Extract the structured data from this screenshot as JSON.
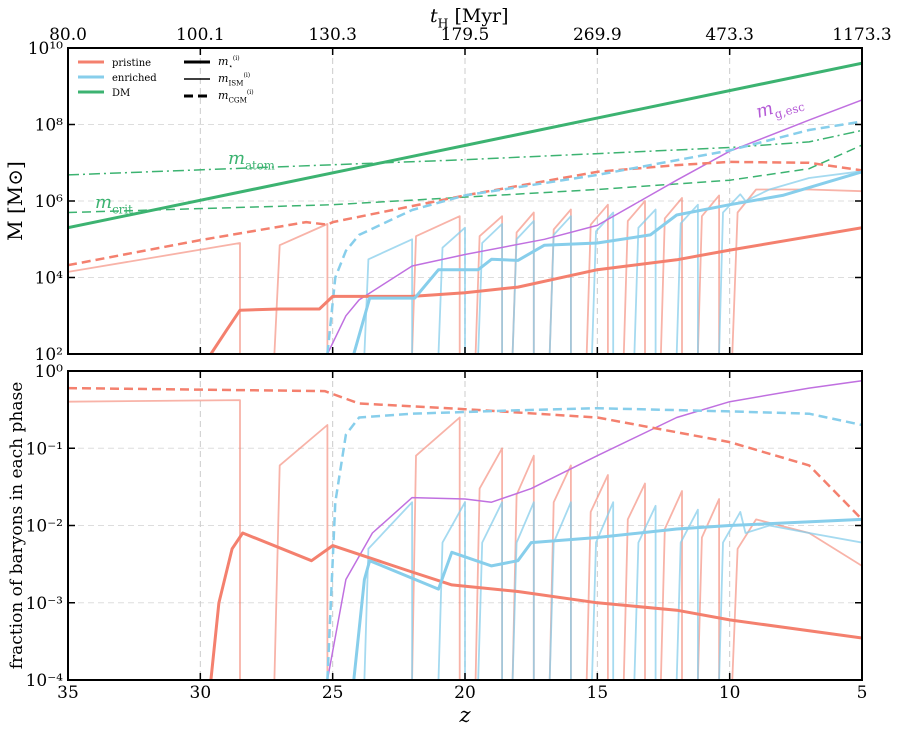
{
  "chart_data": [
    {
      "type": "line",
      "log_y": true,
      "grid": true,
      "top_xlabel": {
        "base": "t",
        "sub": "H",
        "rest": " [Myr]"
      },
      "ylabel": "M [M⊙]",
      "xlim": [
        35,
        5
      ],
      "xticks": [
        35,
        30,
        25,
        20,
        15,
        10,
        5
      ],
      "top_xticks": [
        {
          "value": 35,
          "label": "80.0"
        },
        {
          "value": 30,
          "label": "100.1"
        },
        {
          "value": 25,
          "label": "130.3"
        },
        {
          "value": 20,
          "label": "179.5"
        },
        {
          "value": 15,
          "label": "269.9"
        },
        {
          "value": 10,
          "label": "473.3"
        },
        {
          "value": 5,
          "label": "1173.3"
        }
      ],
      "ylim": [
        100,
        10000000000
      ],
      "yticks": [
        {
          "value": 100,
          "label": "10²"
        },
        {
          "value": 10000,
          "label": "10⁴"
        },
        {
          "value": 1000000,
          "label": "10⁶"
        },
        {
          "value": 100000000,
          "label": "10⁸"
        },
        {
          "value": 10000000000,
          "label": "10¹⁰"
        }
      ],
      "legend_position": "upper left",
      "legend_colors": [
        {
          "label": "pristine",
          "color": "#f4806e"
        },
        {
          "label": "enriched",
          "color": "#87ceeb"
        },
        {
          "label": "DM",
          "color": "#3cb371"
        }
      ],
      "legend_styles": [
        {
          "label": {
            "base": "m",
            "sub": "⋆",
            "sup": "(i)"
          },
          "dash": "solid",
          "width": 3
        },
        {
          "label": {
            "base": "m",
            "sub": "ISM",
            "sup": "(i)"
          },
          "dash": "solid",
          "width": 1.5
        },
        {
          "label": {
            "base": "m",
            "sub": "CGM",
            "sup": "(i)"
          },
          "dash": "dashed",
          "width": 3
        }
      ],
      "annotations": [
        {
          "base": "m",
          "sub": "atom",
          "color": "#3cb371"
        },
        {
          "base": "m",
          "sub": "crit",
          "color": "#3cb371"
        },
        {
          "base": "m",
          "sub": "g,esc",
          "color": "#b45ad6"
        }
      ],
      "series": [
        {
          "color": "#3cb371",
          "dash": "dashdot",
          "width": 1.5,
          "alpha": 1,
          "x": [
            35,
            20,
            10,
            7,
            5
          ],
          "values": [
            4800000,
            12000000,
            25000000,
            35000000,
            70000000
          ]
        },
        {
          "color": "#3cb371",
          "dash": "dashed",
          "width": 1.5,
          "alpha": 1,
          "x": [
            35,
            25,
            15,
            10,
            7,
            5
          ],
          "values": [
            500000,
            800000,
            2000000,
            3500000,
            7000000,
            29000000
          ]
        },
        {
          "color": "#f4806e",
          "dash": "solid",
          "width": 1.8,
          "alpha": 0.6,
          "x": [
            35,
            28.5,
            28.5,
            27.2,
            27.0,
            25.2,
            25.2,
            22.0,
            21.85,
            20.2,
            20.2,
            19.6,
            19.45,
            18.6,
            18.6,
            18.2,
            18.05,
            17.4,
            17.4,
            16.8,
            16.65,
            16.0,
            16.0,
            15.4,
            15.25,
            14.6,
            14.6,
            14.0,
            13.85,
            13.2,
            13.2,
            12.6,
            12.45,
            11.8,
            11.8,
            11.2,
            11.05,
            10.4,
            10.4,
            9.9,
            9.7,
            9,
            7,
            5
          ],
          "values": [
            14000,
            80000,
            100,
            100,
            70000,
            250000,
            100,
            100,
            120000,
            400000,
            100,
            100,
            120000,
            400000,
            100,
            100,
            150000,
            500000,
            100,
            100,
            180000,
            600000,
            100,
            100,
            240000,
            800000,
            100,
            100,
            300000,
            1000000,
            100,
            100,
            350000,
            1200000,
            100,
            100,
            400000,
            1400000,
            100,
            100,
            500000,
            2000000,
            2000000,
            1800000
          ]
        },
        {
          "color": "#87ceeb",
          "dash": "solid",
          "width": 1.8,
          "alpha": 0.75,
          "x": [
            23.8,
            23.65,
            22.0,
            22.0,
            21.0,
            20.85,
            20.0,
            20.0,
            19.5,
            19.35,
            18.6,
            18.6,
            18.2,
            18.05,
            17.4,
            17.4,
            16.8,
            16.65,
            16.0,
            16.0,
            15.2,
            15.05,
            14.4,
            14.4,
            13.6,
            13.45,
            12.8,
            12.8,
            12.0,
            11.85,
            11.2,
            11.2,
            10.4,
            10.25,
            9.6,
            9.4,
            8.5,
            7,
            5
          ],
          "values": [
            100,
            30000,
            100000,
            100,
            100,
            60000,
            200000,
            100,
            100,
            80000,
            250000,
            100,
            100,
            100000,
            300000,
            100,
            100,
            130000,
            400000,
            100,
            100,
            160000,
            500000,
            100,
            100,
            200000,
            600000,
            100,
            100,
            260000,
            800000,
            100,
            100,
            500000,
            1500000,
            1000000,
            2000000,
            4000000,
            6000000
          ]
        },
        {
          "color": "#c070e0",
          "dash": "solid",
          "width": 1.5,
          "alpha": 1,
          "x": [
            25.2,
            24.5,
            24,
            22,
            20,
            17,
            15,
            12,
            10,
            7,
            5
          ],
          "values": [
            100,
            1000,
            2600,
            20000,
            40000,
            100000,
            230000,
            3500000,
            20000000,
            130000000,
            440000000
          ]
        },
        {
          "color": "#f4806e",
          "dash": "dashed",
          "width": 2.5,
          "alpha": 1,
          "x": [
            35,
            30,
            26,
            25.2,
            25,
            20,
            15,
            12,
            10,
            7,
            5
          ],
          "values": [
            21000,
            95000,
            280000,
            240000,
            280000,
            1400000,
            5800000,
            8700000,
            10500000,
            10000000,
            6300000
          ]
        },
        {
          "color": "#87ceeb",
          "dash": "dashed",
          "width": 2.5,
          "alpha": 1,
          "x": [
            25.2,
            24.9,
            24.5,
            24,
            22,
            20,
            15,
            10,
            7,
            5
          ],
          "values": [
            100,
            10000,
            50000,
            130000,
            580000,
            1400000,
            4800000,
            21000000,
            72000000,
            120000000
          ]
        },
        {
          "color": "#3cb371",
          "dash": "solid",
          "width": 3,
          "alpha": 1,
          "x": [
            35,
            5
          ],
          "values": [
            200000,
            4000000000
          ]
        },
        {
          "color": "#f4806e",
          "dash": "solid",
          "width": 3,
          "alpha": 1,
          "x": [
            29.6,
            29,
            28.5,
            27,
            25.5,
            25,
            22,
            20,
            18,
            15,
            12,
            10,
            5
          ],
          "values": [
            100,
            430,
            1400,
            1500,
            1500,
            3200,
            3200,
            4000,
            5600,
            16000,
            29000,
            52000,
            200000
          ]
        },
        {
          "color": "#87ceeb",
          "dash": "solid",
          "width": 3,
          "alpha": 1,
          "x": [
            24.2,
            23.6,
            21.9,
            21,
            19.5,
            19,
            18,
            17,
            15,
            13,
            12,
            10,
            8,
            5
          ],
          "values": [
            100,
            2900,
            2900,
            16000,
            16000,
            30000,
            28000,
            70000,
            80000,
            130000,
            430000,
            800000,
            1400000,
            5800000
          ]
        }
      ]
    },
    {
      "type": "line",
      "log_y": true,
      "grid": true,
      "xlabel": "z",
      "ylabel": "fraction of baryons in each phase",
      "xlim": [
        35,
        5
      ],
      "xticks": [
        35,
        30,
        25,
        20,
        15,
        10,
        5
      ],
      "ylim": [
        0.0001,
        1
      ],
      "yticks": [
        {
          "value": 0.0001,
          "label": "10⁻⁴"
        },
        {
          "value": 0.001,
          "label": "10⁻³"
        },
        {
          "value": 0.01,
          "label": "10⁻²"
        },
        {
          "value": 0.1,
          "label": "10⁻¹"
        },
        {
          "value": 1,
          "label": "10⁰"
        }
      ],
      "series": [
        {
          "color": "#f4806e",
          "dash": "solid",
          "width": 1.8,
          "alpha": 0.6,
          "x": [
            35,
            28.5,
            28.5,
            27.2,
            27.0,
            25.2,
            25.2,
            22.0,
            21.85,
            20.2,
            20.2,
            19.6,
            19.45,
            18.6,
            18.6,
            18.2,
            18.05,
            17.4,
            17.4,
            16.8,
            16.65,
            16.0,
            16.0,
            15.4,
            15.25,
            14.6,
            14.6,
            14.0,
            13.85,
            13.2,
            13.2,
            12.6,
            12.45,
            11.8,
            11.8,
            11.2,
            11.05,
            10.4,
            10.4,
            9.9,
            9.7,
            9,
            7,
            5
          ],
          "values": [
            0.4,
            0.42,
            0.0001,
            0.0001,
            0.06,
            0.2,
            0.0001,
            0.0001,
            0.08,
            0.25,
            0.0001,
            0.0001,
            0.03,
            0.1,
            0.0001,
            0.0001,
            0.025,
            0.08,
            0.0001,
            0.0001,
            0.02,
            0.06,
            0.0001,
            0.0001,
            0.015,
            0.045,
            0.0001,
            0.0001,
            0.012,
            0.035,
            0.0001,
            0.0001,
            0.009,
            0.028,
            0.0001,
            0.0001,
            0.007,
            0.022,
            0.0001,
            0.0001,
            0.005,
            0.012,
            0.008,
            0.003
          ]
        },
        {
          "color": "#87ceeb",
          "dash": "solid",
          "width": 1.8,
          "alpha": 0.75,
          "x": [
            23.8,
            23.65,
            22.0,
            22.0,
            21.0,
            20.85,
            20.0,
            20.0,
            19.5,
            19.35,
            18.6,
            18.6,
            18.2,
            18.05,
            17.4,
            17.4,
            16.8,
            16.65,
            16.0,
            16.0,
            15.2,
            15.05,
            14.4,
            14.4,
            13.6,
            13.45,
            12.8,
            12.8,
            12.0,
            11.85,
            11.2,
            11.2,
            10.4,
            10.25,
            9.6,
            9.4,
            8.5,
            7,
            5
          ],
          "values": [
            0.0001,
            0.005,
            0.02,
            0.0001,
            0.0001,
            0.006,
            0.02,
            0.0001,
            0.0001,
            0.006,
            0.02,
            0.0001,
            0.0001,
            0.006,
            0.02,
            0.0001,
            0.0001,
            0.006,
            0.02,
            0.0001,
            0.0001,
            0.006,
            0.02,
            0.0001,
            0.0001,
            0.006,
            0.018,
            0.0001,
            0.0001,
            0.006,
            0.016,
            0.0001,
            0.0001,
            0.006,
            0.015,
            0.008,
            0.01,
            0.008,
            0.006
          ]
        },
        {
          "color": "#c070e0",
          "dash": "solid",
          "width": 1.5,
          "alpha": 1,
          "x": [
            25.2,
            24.5,
            23.5,
            22,
            20,
            19,
            17.5,
            15,
            12,
            10,
            7,
            5
          ],
          "values": [
            0.0001,
            0.002,
            0.008,
            0.023,
            0.022,
            0.02,
            0.03,
            0.08,
            0.25,
            0.4,
            0.6,
            0.75
          ]
        },
        {
          "color": "#f4806e",
          "dash": "dashed",
          "width": 2.5,
          "alpha": 1,
          "x": [
            35,
            25.3,
            24,
            20,
            15,
            10,
            7,
            5
          ],
          "values": [
            0.6,
            0.55,
            0.38,
            0.32,
            0.25,
            0.12,
            0.06,
            0.012
          ]
        },
        {
          "color": "#87ceeb",
          "dash": "dashed",
          "width": 2.5,
          "alpha": 1,
          "x": [
            25.2,
            24.9,
            24.5,
            24,
            22,
            18,
            15,
            10,
            7,
            5
          ],
          "values": [
            0.0001,
            0.02,
            0.15,
            0.25,
            0.28,
            0.31,
            0.33,
            0.3,
            0.28,
            0.2
          ]
        },
        {
          "color": "#f4806e",
          "dash": "solid",
          "width": 3,
          "alpha": 1,
          "x": [
            29.6,
            29.3,
            28.8,
            28.4,
            25.8,
            25,
            22,
            20.5,
            18,
            15,
            12,
            10,
            5
          ],
          "values": [
            0.0001,
            0.001,
            0.005,
            0.008,
            0.0035,
            0.0055,
            0.0025,
            0.0017,
            0.0014,
            0.001,
            0.0008,
            0.0006,
            0.00035
          ]
        },
        {
          "color": "#87ceeb",
          "dash": "solid",
          "width": 3,
          "alpha": 1,
          "x": [
            24.2,
            23.8,
            23.6,
            21,
            20.5,
            19,
            18,
            17.5,
            15,
            12,
            10,
            5
          ],
          "values": [
            0.0001,
            0.002,
            0.0035,
            0.0015,
            0.0045,
            0.003,
            0.0035,
            0.006,
            0.007,
            0.009,
            0.01,
            0.012
          ]
        }
      ]
    }
  ]
}
